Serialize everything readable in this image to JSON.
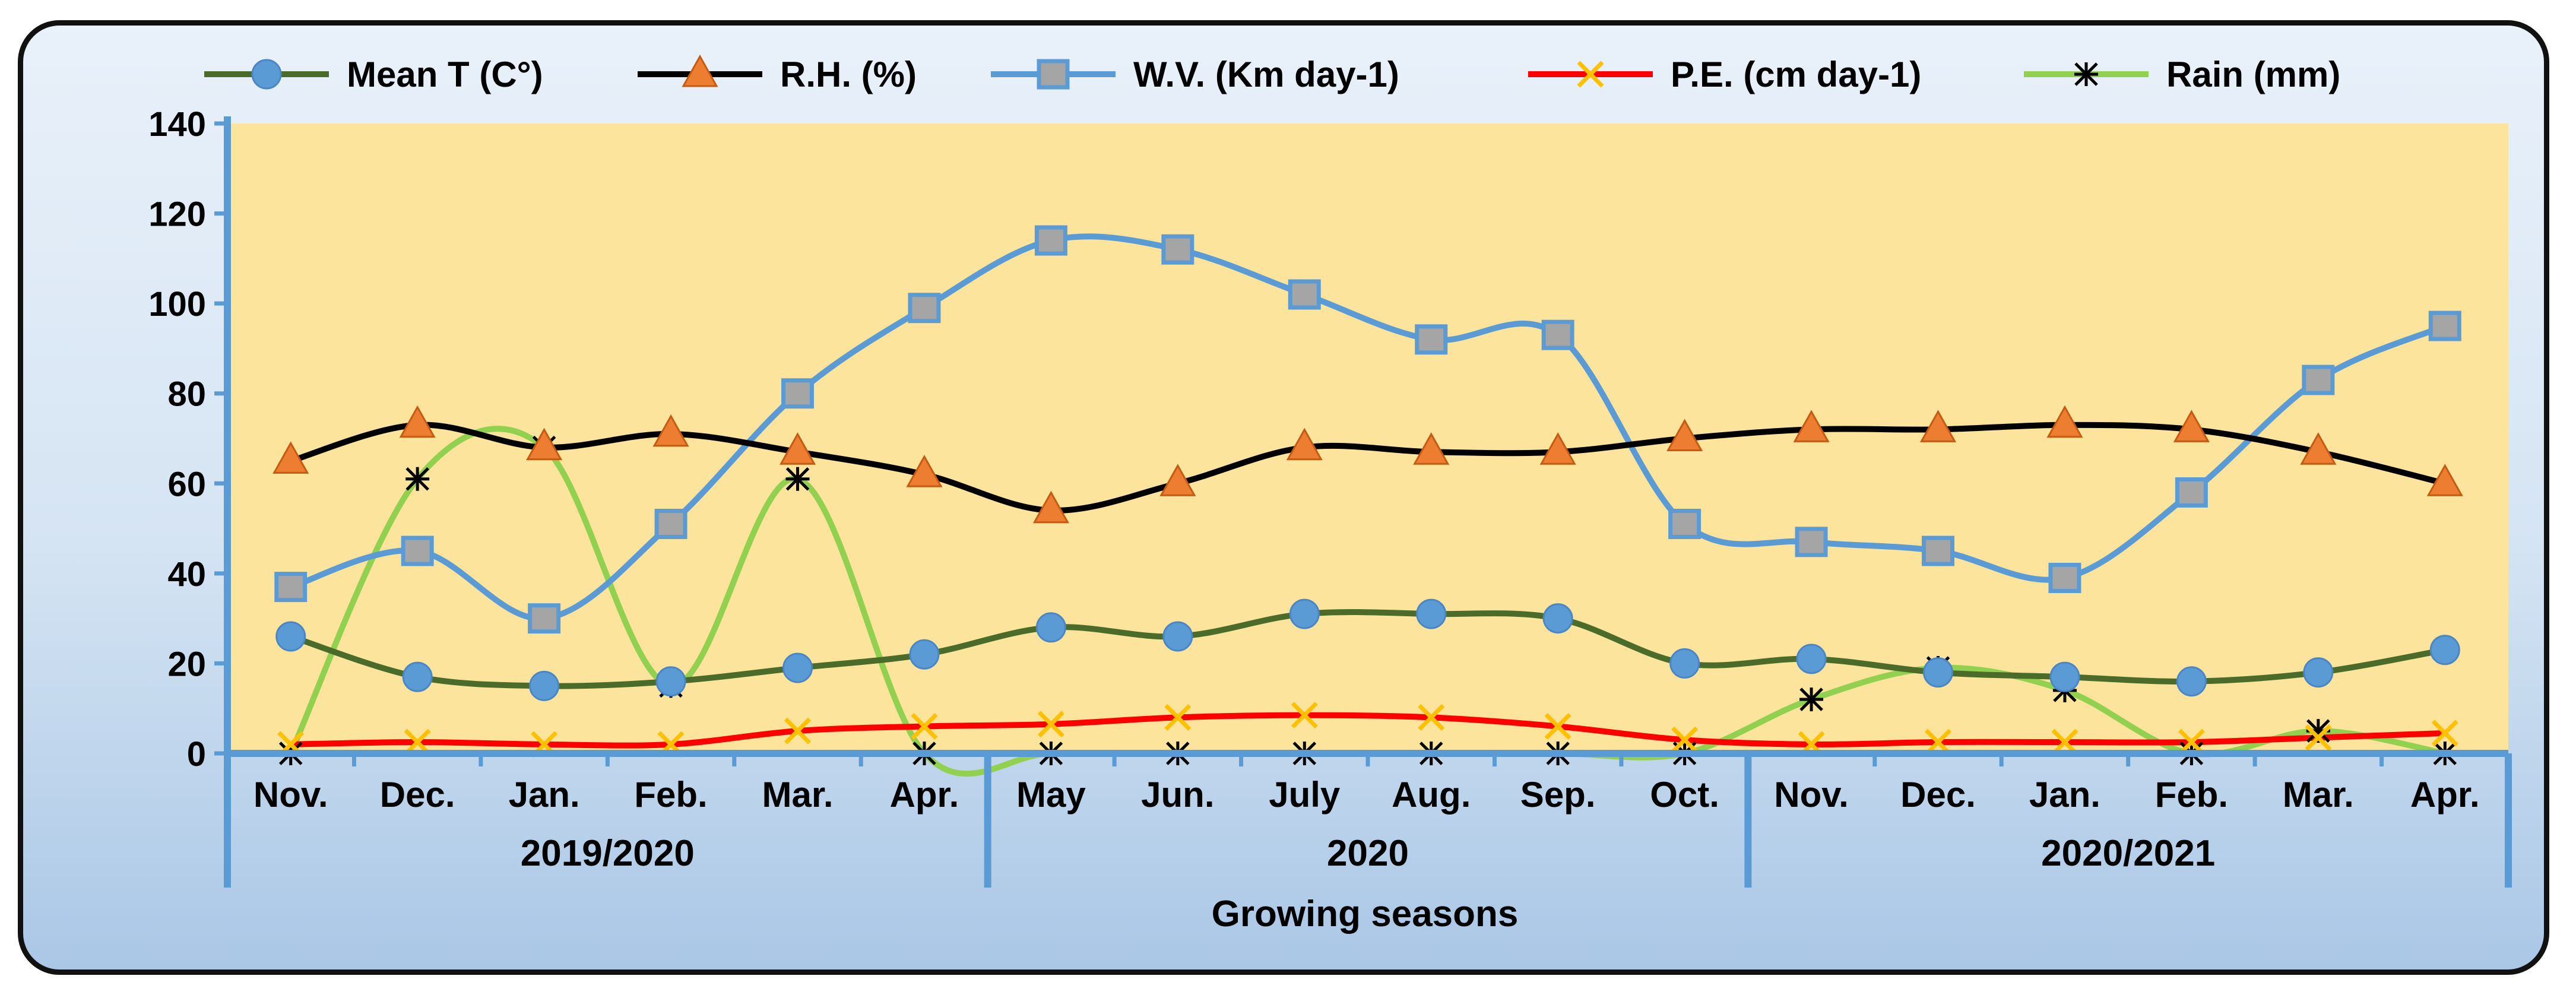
{
  "chart_data": {
    "type": "line",
    "xlabel": "Growing seasons",
    "ylabel": "",
    "ylim": [
      0,
      140
    ],
    "yticks": [
      "0",
      "20",
      "40",
      "60",
      "80",
      "100",
      "120",
      "140"
    ],
    "categories": [
      "Nov.",
      "Dec.",
      "Jan.",
      "Feb.",
      "Mar.",
      "Apr.",
      "May",
      "Jun.",
      "July",
      "Aug.",
      "Sep.",
      "Oct.",
      "Nov.",
      "Dec.",
      "Jan.",
      "Feb.",
      "Mar.",
      "Apr."
    ],
    "groups": [
      {
        "label": "2019/2020",
        "start": 0,
        "end": 5
      },
      {
        "label": "2020",
        "start": 6,
        "end": 11
      },
      {
        "label": "2020/2021",
        "start": 12,
        "end": 17
      }
    ],
    "legend_position": "top",
    "series": [
      {
        "name": "Mean T (C°)",
        "color": "#4a6b2a",
        "marker": "circle",
        "marker_color": "#5b9bd5",
        "values": [
          26,
          17,
          15,
          16,
          19,
          22,
          28,
          26,
          31,
          31,
          30,
          20,
          21,
          18,
          17,
          16,
          18,
          23
        ]
      },
      {
        "name": "R.H. (%)",
        "color": "#000000",
        "marker": "triangle",
        "marker_color": "#ed7d31",
        "values": [
          65,
          73,
          68,
          71,
          67,
          62,
          54,
          60,
          68,
          67,
          67,
          70,
          72,
          72,
          73,
          72,
          67,
          60
        ]
      },
      {
        "name": "W.V. (Km day-1)",
        "color": "#5b9bd5",
        "marker": "square",
        "marker_color": "#a5a5a5",
        "values": [
          37,
          45,
          30,
          51,
          80,
          99,
          114,
          112,
          102,
          92,
          93,
          51,
          47,
          45,
          39,
          58,
          83,
          95
        ]
      },
      {
        "name": "P.E. (cm day-1)",
        "color": "#ff0000",
        "marker": "x",
        "marker_color": "#ffc000",
        "values": [
          2,
          2.5,
          2,
          2,
          5,
          6,
          6.5,
          8,
          8.5,
          8,
          6,
          3,
          2,
          2.5,
          2.5,
          2.5,
          3.5,
          4.5
        ]
      },
      {
        "name": "Rain (mm)",
        "color": "#92d050",
        "marker": "asterisk",
        "marker_color": "#000000",
        "values": [
          0,
          61,
          68,
          15,
          61,
          0,
          0,
          0,
          0,
          0,
          0,
          0,
          12,
          19,
          14,
          0,
          5,
          0
        ]
      }
    ]
  }
}
